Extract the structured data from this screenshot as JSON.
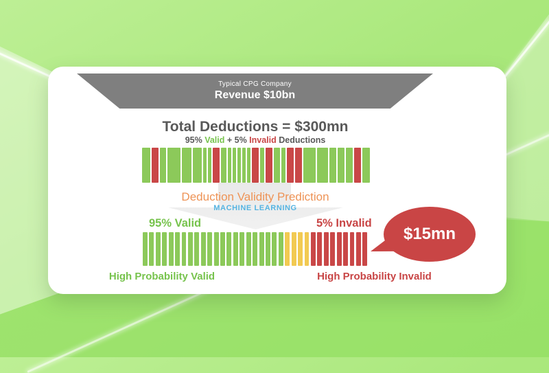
{
  "colors": {
    "stripe_green": "#8cc95a",
    "stripe_red": "#c94747",
    "stripe_yellow": "#f2ca52",
    "funnel_gray": "#7f7f7f",
    "dark_text": "#595959",
    "valid_green": "#77c34d",
    "invalid_red": "#c84545",
    "prediction_orange": "#ee9356",
    "machine_learning_blue": "#55b4e2",
    "bubble_red": "#c94545"
  },
  "funnel": {
    "company": "Typical CPG Company",
    "revenue": "Revenue $10bn"
  },
  "deductions": {
    "title": "Total Deductions = $300mn",
    "subtitle_pct_valid": "95% ",
    "subtitle_valid": "Valid",
    "subtitle_plus": " + 5% ",
    "subtitle_invalid": "Invalid",
    "subtitle_suffix": " Deductions"
  },
  "prediction": {
    "title": "Deduction Validity Prediction",
    "subtitle": "MACHINE LEARNING"
  },
  "labels": {
    "valid_pct": "95% Valid",
    "invalid_pct": "5% Invalid",
    "high_valid": "High Probability Valid",
    "high_invalid": "High Probability Invalid"
  },
  "bubble": {
    "amount": "$15mn"
  },
  "bars": {
    "bar1_pattern": [
      [
        "g",
        10
      ],
      [
        "r",
        8
      ],
      [
        "g",
        7
      ],
      [
        "g",
        15
      ],
      [
        "g",
        11
      ],
      [
        "g",
        11
      ],
      [
        "g",
        4
      ],
      [
        "g",
        4
      ],
      [
        "r",
        8
      ],
      [
        "g",
        6
      ],
      [
        "g",
        4
      ],
      [
        "g",
        4
      ],
      [
        "g",
        4
      ],
      [
        "g",
        4
      ],
      [
        "g",
        4
      ],
      [
        "r",
        8
      ],
      [
        "g",
        5
      ],
      [
        "r",
        8
      ],
      [
        "g",
        7
      ],
      [
        "g",
        5
      ],
      [
        "r",
        8
      ],
      [
        "r",
        8
      ],
      [
        "g",
        14
      ],
      [
        "g",
        13
      ],
      [
        "g",
        8
      ],
      [
        "g",
        8
      ],
      [
        "g",
        8
      ],
      [
        "r",
        8
      ],
      [
        "g",
        9
      ]
    ],
    "bar2_counts": {
      "green": 22,
      "yellow": 4,
      "red": 9
    }
  }
}
